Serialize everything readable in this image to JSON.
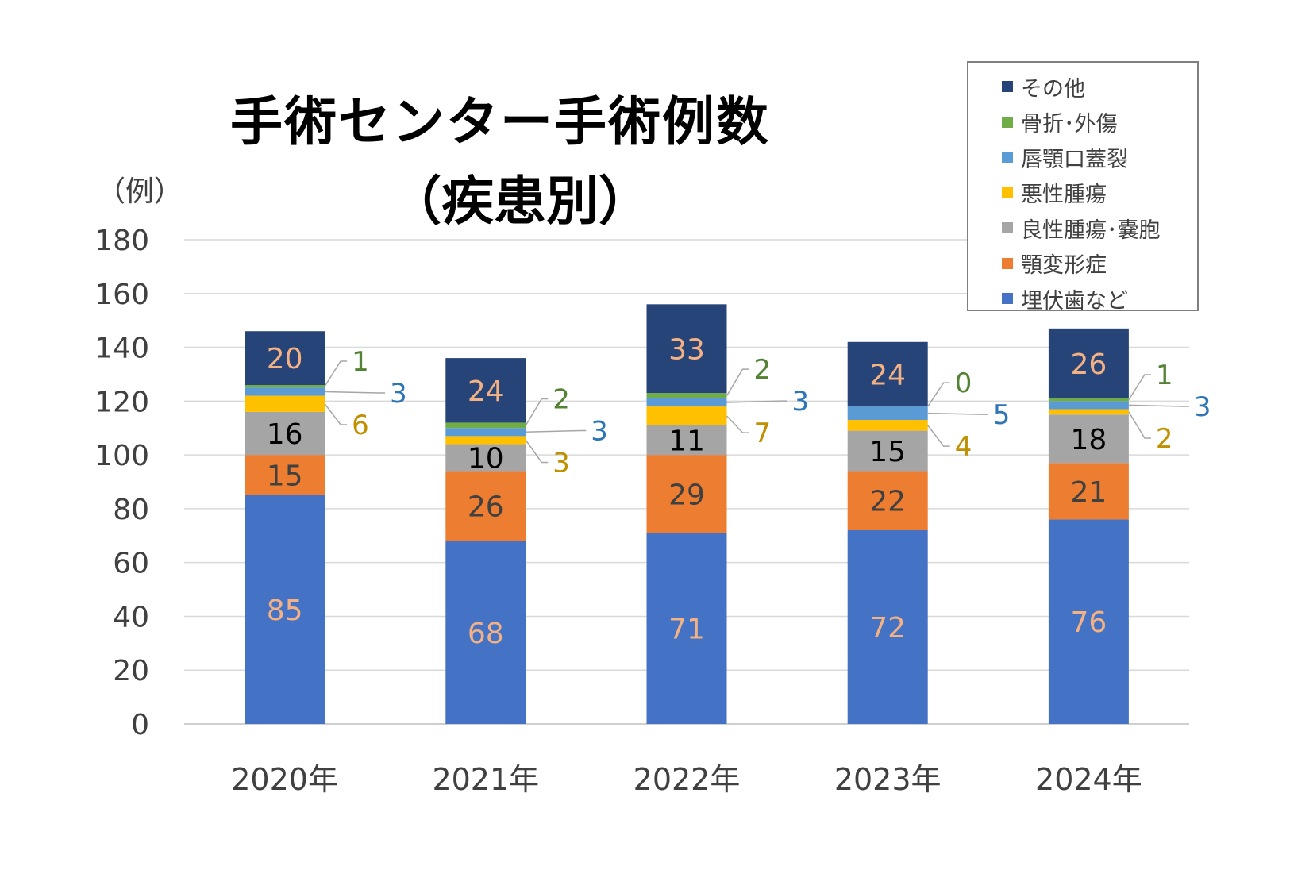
{
  "chart_data": {
    "type": "bar",
    "stacked": true,
    "title": "手術センター手術例数",
    "subtitle": "（疾患別）",
    "ylabel": "（例）",
    "ylim": [
      0,
      180
    ],
    "yticks": [
      0,
      20,
      40,
      60,
      80,
      100,
      120,
      140,
      160,
      180
    ],
    "grid": true,
    "legend_position": "top-right",
    "categories": [
      "2020年",
      "2021年",
      "2022年",
      "2023年",
      "2024年"
    ],
    "series": [
      {
        "name": "埋伏歯など",
        "values": [
          85,
          68,
          71,
          72,
          76
        ],
        "color": "#4472C4",
        "label_color": "#F4B183"
      },
      {
        "name": "顎変形症",
        "values": [
          15,
          26,
          29,
          22,
          21
        ],
        "color": "#ED7D31",
        "label_color": "#404040"
      },
      {
        "name": "良性腫瘍･嚢胞",
        "values": [
          16,
          10,
          11,
          15,
          18
        ],
        "color": "#A5A5A5",
        "label_color": "#000000"
      },
      {
        "name": "悪性腫瘍",
        "values": [
          6,
          3,
          7,
          4,
          2
        ],
        "color": "#FFC000",
        "label_color": "#BF9000"
      },
      {
        "name": "唇顎口蓋裂",
        "values": [
          3,
          3,
          3,
          5,
          3
        ],
        "color": "#5B9BD5",
        "label_color": "#2E75B6"
      },
      {
        "name": "骨折･外傷",
        "values": [
          1,
          2,
          2,
          0,
          1
        ],
        "color": "#70AD47",
        "label_color": "#548235"
      },
      {
        "name": "その他",
        "values": [
          20,
          24,
          33,
          24,
          26
        ],
        "color": "#264478",
        "label_color": "#F4B183"
      }
    ]
  }
}
